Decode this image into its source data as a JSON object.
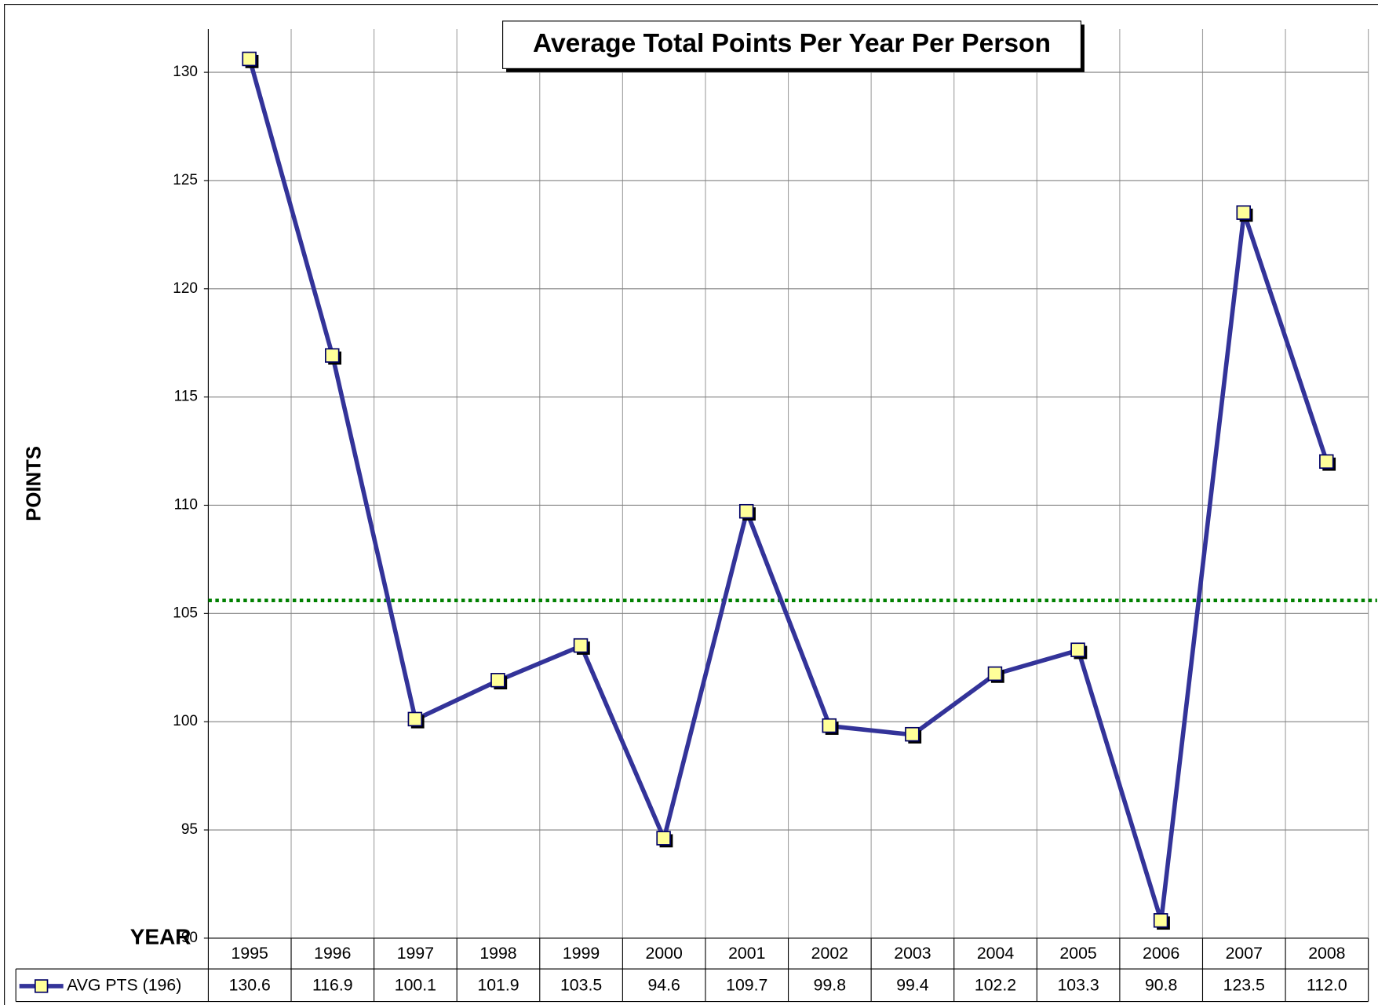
{
  "chart_data": {
    "type": "line",
    "title": "Average Total Points Per Year Per Person",
    "y_label": "POINTS",
    "x_label": "YEAR",
    "categories": [
      "1995",
      "1996",
      "1997",
      "1998",
      "1999",
      "2000",
      "2001",
      "2002",
      "2003",
      "2004",
      "2005",
      "2006",
      "2007",
      "2008"
    ],
    "series": [
      {
        "name": "AVG PTS (196)",
        "color": "#333399",
        "marker_color": "#ffff99",
        "values": [
          130.6,
          116.9,
          100.1,
          101.9,
          103.5,
          94.6,
          109.7,
          99.8,
          99.4,
          102.2,
          103.3,
          90.8,
          123.5,
          112.0
        ],
        "value_labels": [
          "130.6",
          "116.9",
          "100.1",
          "101.9",
          "103.5",
          "94.6",
          "109.7",
          "99.8",
          "99.4",
          "102.2",
          "103.3",
          "90.8",
          "123.5",
          "112.0"
        ]
      }
    ],
    "reference_line": {
      "value": 105.6,
      "color": "#008000"
    },
    "ylim": [
      90,
      132
    ],
    "yticks": [
      90,
      95,
      100,
      105,
      110,
      115,
      120,
      125,
      130
    ],
    "grid": true,
    "data_table": true
  }
}
